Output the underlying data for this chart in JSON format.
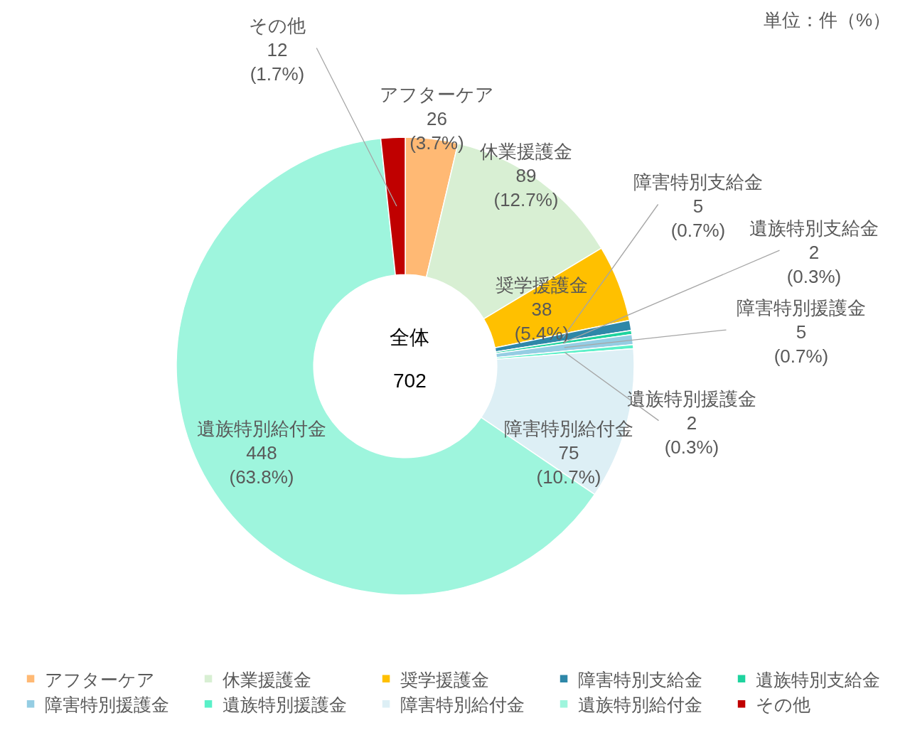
{
  "chart_data": {
    "type": "donut",
    "subtitle": "単位：件（%）",
    "categories": [
      "アフターケア",
      "休業援護金",
      "奨学援護金",
      "障害特別支給金",
      "遺族特別支給金",
      "障害特別援護金",
      "遺族特別援護金",
      "障害特別給付金",
      "遺族特別給付金",
      "その他"
    ],
    "values": [
      26,
      89,
      38,
      5,
      2,
      5,
      2,
      75,
      448,
      12
    ],
    "colors": [
      "#ffb974",
      "#d8efd3",
      "#ffc000",
      "#2e87a8",
      "#1ed39e",
      "#95cde3",
      "#5af0c8",
      "#ddeff5",
      "#9ef5dd",
      "#c00000"
    ],
    "value_labels": [
      "26\n(3.7%)",
      "89\n(12.7%)",
      "38\n(5.4%)",
      "5\n(0.7%)",
      "2\n(0.3%)",
      "5\n(0.7%)",
      "2\n(0.3%)",
      "75\n(10.7%)",
      "448\n(63.8%)",
      "12\n(1.7%)"
    ],
    "annotations": [
      "全体",
      "702"
    ],
    "legend": "bottom"
  }
}
